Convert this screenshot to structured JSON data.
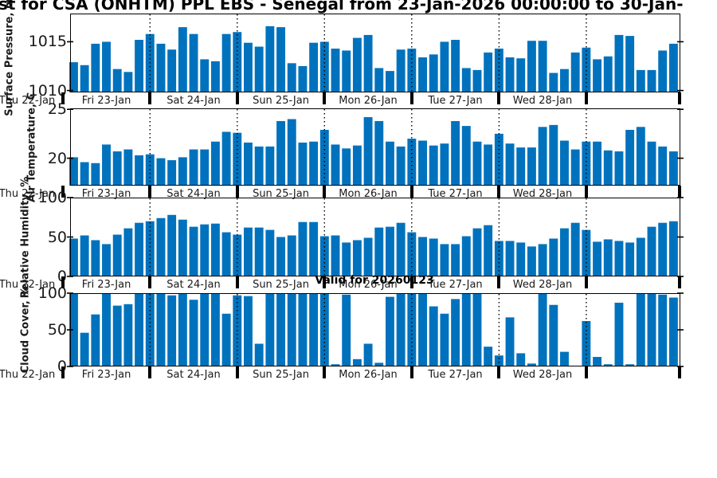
{
  "title": {
    "text": "st for CSA (ONHTM) PPL EBS  - Senegal from 23-Jan-2026 00:00:00 to 30-Jan-"
  },
  "valid_label": "Valid for 20260123",
  "colors": {
    "bar": "#0072BD",
    "axis": "#000000",
    "text": "#1a1a1a"
  },
  "x_axis": {
    "day_labels": [
      "Thu 22-Jan",
      "Fri 23-Jan",
      "Sat 24-Jan",
      "Sun 25-Jan",
      "Mon 26-Jan",
      "Tue 27-Jan",
      "Wed 28-Jan"
    ],
    "points_per_day": 8,
    "grid": "dotted-vertical-at-day-boundaries"
  },
  "chart_data": [
    {
      "type": "bar",
      "ylabel": "Surface Pressure, mb",
      "yticks": [
        1010,
        1015
      ],
      "ylim": [
        1009.8,
        1017.9
      ],
      "values": [
        1012.9,
        1012.6,
        1014.8,
        1015.0,
        1012.2,
        1011.9,
        1015.2,
        1015.8,
        1014.8,
        1014.2,
        1016.5,
        1015.8,
        1013.2,
        1013.0,
        1015.8,
        1016.0,
        1014.9,
        1014.5,
        1016.6,
        1016.5,
        1012.8,
        1012.5,
        1014.9,
        1015.0,
        1014.3,
        1014.1,
        1015.4,
        1015.7,
        1012.3,
        1012.0,
        1014.2,
        1014.3,
        1013.4,
        1013.7,
        1015.0,
        1015.2,
        1012.3,
        1012.1,
        1013.9,
        1014.3,
        1013.4,
        1013.3,
        1015.1,
        1015.1,
        1011.8,
        1012.2,
        1013.9,
        1014.4,
        1013.2,
        1013.5,
        1015.7,
        1015.6,
        1012.1,
        1012.1,
        1014.1,
        1014.8
      ]
    },
    {
      "type": "bar",
      "ylabel": "Air Temperature, C",
      "yticks": [
        20,
        25
      ],
      "ylim": [
        17.2,
        25.1
      ],
      "values": [
        20.1,
        19.6,
        19.5,
        21.4,
        20.7,
        20.9,
        20.3,
        20.4,
        20.0,
        19.8,
        20.1,
        20.9,
        20.9,
        21.7,
        22.7,
        22.6,
        21.6,
        21.2,
        21.2,
        23.8,
        24.0,
        21.6,
        21.7,
        22.9,
        21.4,
        21.0,
        21.3,
        24.2,
        23.8,
        21.7,
        21.2,
        22.0,
        21.8,
        21.3,
        21.5,
        23.8,
        23.3,
        21.7,
        21.4,
        22.5,
        21.5,
        21.1,
        21.1,
        23.2,
        23.4,
        21.8,
        20.9,
        21.7,
        21.7,
        20.8,
        20.7,
        22.9,
        23.2,
        21.7,
        21.2,
        20.7
      ]
    },
    {
      "type": "bar",
      "ylabel": "Relative Humidity, %",
      "yticks": [
        0,
        50,
        100
      ],
      "ylim": [
        0,
        100
      ],
      "values": [
        48,
        52,
        46,
        41,
        53,
        61,
        68,
        70,
        74,
        78,
        72,
        63,
        66,
        67,
        56,
        53,
        62,
        62,
        59,
        50,
        52,
        69,
        69,
        51,
        52,
        43,
        46,
        49,
        62,
        63,
        68,
        56,
        50,
        48,
        41,
        41,
        51,
        61,
        65,
        45,
        45,
        43,
        38,
        41,
        48,
        61,
        68,
        59,
        44,
        47,
        45,
        43,
        49,
        63,
        68,
        70
      ]
    },
    {
      "type": "bar",
      "ylabel": "Cloud Cover, %",
      "yticks": [
        0,
        50,
        100
      ],
      "ylim": [
        0,
        100
      ],
      "values": [
        100,
        46,
        71,
        100,
        83,
        85,
        100,
        100,
        100,
        97,
        99,
        91,
        100,
        100,
        72,
        97,
        96,
        31,
        100,
        100,
        100,
        100,
        100,
        100,
        3,
        98,
        10,
        31,
        5,
        95,
        100,
        100,
        100,
        82,
        72,
        92,
        100,
        100,
        27,
        15,
        67,
        18,
        4,
        100,
        84,
        20,
        0,
        62,
        13,
        3,
        87,
        3,
        100,
        100,
        98,
        94
      ]
    }
  ]
}
